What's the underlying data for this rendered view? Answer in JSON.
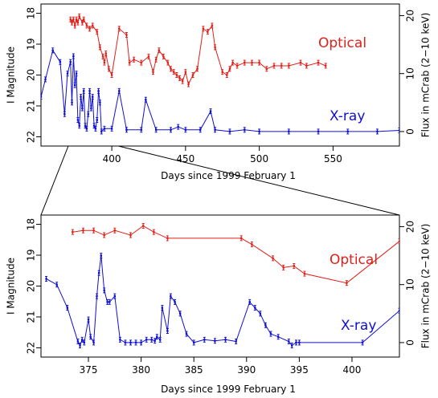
{
  "colors": {
    "optical": "#e0201a",
    "xray": "#1010d0",
    "axis": "#000000"
  },
  "chart_data": [
    {
      "type": "line",
      "panel": "top",
      "xlabel": "Days since 1999 February 1",
      "ylabel_left": "I Magnitude",
      "ylabel_right": "Flux in mCrab (2−10 keV)",
      "xlim": [
        352,
        595
      ],
      "ylim_left": [
        22.3,
        17.7
      ],
      "ylim_right": [
        -2.5,
        22
      ],
      "x_ticks": [
        400,
        450,
        500,
        550
      ],
      "y_ticks_left": [
        18,
        19,
        20,
        21,
        22
      ],
      "y_ticks_right": [
        0,
        10,
        20
      ],
      "x_tick_labels": [
        "400",
        "450",
        "500",
        "550"
      ],
      "y_tick_labels_left": [
        "18",
        "19",
        "20",
        "21",
        "22"
      ],
      "y_tick_labels_right": [
        "0",
        "10",
        "20"
      ],
      "series": [
        {
          "name": "Optical",
          "axis": "left",
          "x": [
            372,
            373,
            374,
            375,
            376,
            377,
            378,
            380,
            381,
            383,
            385,
            387,
            390,
            392,
            394,
            395,
            396,
            398,
            400,
            405,
            410,
            412,
            415,
            420,
            425,
            428,
            430,
            432,
            435,
            438,
            440,
            442,
            444,
            446,
            448,
            450,
            452,
            455,
            458,
            462,
            465,
            468,
            470,
            475,
            478,
            480,
            482,
            485,
            490,
            495,
            500,
            505,
            510,
            515,
            520,
            528,
            532,
            540,
            545
          ],
          "y": [
            18.2,
            18.3,
            18.2,
            18.4,
            18.2,
            18.3,
            18.1,
            18.3,
            18.2,
            18.4,
            18.5,
            18.4,
            18.6,
            19.1,
            19.4,
            19.6,
            19.3,
            19.8,
            20.0,
            18.5,
            18.7,
            19.6,
            19.5,
            19.6,
            19.4,
            19.9,
            19.5,
            19.2,
            19.4,
            19.6,
            19.8,
            19.9,
            20.0,
            20.1,
            20.2,
            19.9,
            20.3,
            20.0,
            19.8,
            18.5,
            18.6,
            18.4,
            19.1,
            19.9,
            20.0,
            19.8,
            19.6,
            19.7,
            19.6,
            19.6,
            19.6,
            19.8,
            19.7,
            19.7,
            19.7,
            19.6,
            19.7,
            19.6,
            19.7
          ]
        },
        {
          "name": "X-ray",
          "axis": "right",
          "x": [
            352,
            355,
            360,
            365,
            368,
            370,
            372,
            373,
            374,
            375,
            376,
            377,
            378,
            379,
            380,
            381,
            382,
            383,
            384,
            385,
            386,
            387,
            388,
            389,
            390,
            391,
            392,
            393,
            395,
            400,
            405,
            410,
            420,
            423,
            430,
            440,
            445,
            450,
            460,
            467,
            470,
            480,
            490,
            500,
            520,
            540,
            560,
            580,
            595
          ],
          "y": [
            6,
            9,
            14,
            12,
            3,
            10,
            12,
            5,
            13,
            8,
            10,
            2,
            1,
            6,
            4,
            7,
            1,
            0.5,
            3,
            7,
            4,
            6,
            1,
            0.5,
            2,
            7,
            5,
            0,
            0.5,
            0.5,
            7,
            0.3,
            0.3,
            5.5,
            0.3,
            0.3,
            0.8,
            0.3,
            0.3,
            3.5,
            0.3,
            0,
            0.3,
            0,
            0,
            0,
            0,
            0,
            0.2
          ]
        }
      ],
      "annotations": [
        "Optical",
        "X-ray"
      ]
    },
    {
      "type": "line",
      "panel": "bottom",
      "xlabel": "Days since 1999 February 1",
      "ylabel_left": "I Magnitude",
      "ylabel_right": "Flux in mCrab (2−10 keV)",
      "xlim": [
        370.5,
        404.5
      ],
      "ylim_left": [
        22.3,
        17.7
      ],
      "ylim_right": [
        -2.5,
        22
      ],
      "x_ticks": [
        375,
        380,
        385,
        390,
        395,
        400
      ],
      "y_ticks_left": [
        18,
        19,
        20,
        21,
        22
      ],
      "y_ticks_right": [
        0,
        10,
        20
      ],
      "x_tick_labels": [
        "375",
        "380",
        "385",
        "390",
        "395",
        "400"
      ],
      "y_tick_labels_left": [
        "18",
        "19",
        "20",
        "21",
        "22"
      ],
      "y_tick_labels_right": [
        "0",
        "10",
        "20"
      ],
      "series": [
        {
          "name": "Optical",
          "axis": "left",
          "x": [
            373.5,
            374.5,
            375.5,
            376.5,
            377.5,
            379,
            380.2,
            381.2,
            382.5,
            389.5,
            390.5,
            392.5,
            393.5,
            394.5,
            395.5,
            399.5,
            404.5
          ],
          "y": [
            18.25,
            18.2,
            18.2,
            18.35,
            18.2,
            18.35,
            18.05,
            18.25,
            18.45,
            18.45,
            18.65,
            19.1,
            19.4,
            19.35,
            19.6,
            19.9,
            18.55
          ]
        },
        {
          "name": "X-ray",
          "axis": "right",
          "x": [
            371,
            372,
            373,
            374,
            374.2,
            374.4,
            374.6,
            375,
            375.2,
            375.5,
            375.8,
            376,
            376.2,
            376.5,
            376.8,
            377,
            377.5,
            378,
            378.5,
            379,
            379.5,
            380,
            380.5,
            381,
            381.3,
            381.5,
            381.8,
            382,
            382.5,
            382.8,
            383.2,
            383.7,
            384.3,
            385,
            386,
            387,
            388,
            389,
            390.3,
            390.8,
            391.3,
            391.8,
            392.3,
            393,
            394,
            394.3,
            394.7,
            395,
            401,
            404.5
          ],
          "y": [
            11,
            10,
            6,
            0.2,
            -0.5,
            0.5,
            0,
            4,
            1,
            0,
            8,
            12,
            15,
            9,
            7,
            7,
            8,
            0.5,
            0,
            0,
            0,
            0,
            0.5,
            0.5,
            0.3,
            1,
            0.5,
            6,
            2,
            8,
            7,
            5,
            1.5,
            0,
            0.5,
            0.3,
            0.5,
            0.2,
            7,
            6,
            5,
            3,
            1.5,
            1,
            0.2,
            -0.5,
            0,
            0,
            0,
            5.5
          ]
        }
      ],
      "annotations": [
        "Optical",
        "X-ray"
      ]
    }
  ]
}
